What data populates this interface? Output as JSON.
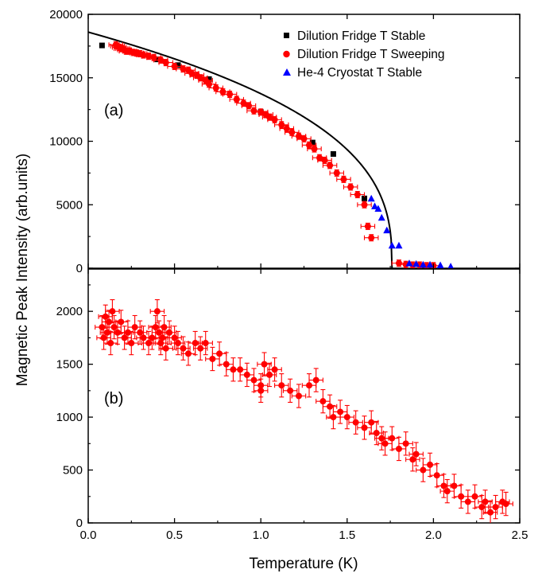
{
  "figure": {
    "ylabel": "Magnetic Peak Intensity (arb.units)",
    "xlabel": "Temperature (K)"
  },
  "colors": {
    "black": "#000000",
    "red": "#ff0000",
    "blue": "#0000ff"
  },
  "chart_data": [
    {
      "type": "scatter",
      "panel_label": "(a)",
      "xlim": [
        0.0,
        2.5
      ],
      "ylim": [
        0,
        20000
      ],
      "x_ticks": [
        "0.0",
        "0.5",
        "1.0",
        "1.5",
        "2.0",
        "2.5"
      ],
      "y_ticks": [
        "0",
        "5000",
        "10000",
        "15000",
        "20000"
      ],
      "legend_position": "top-right",
      "series": [
        {
          "name": "Dilution Fridge T Stable",
          "marker": "square",
          "color": "#000000",
          "x": [
            0.08,
            0.4,
            0.52,
            0.7,
            1.0,
            1.3,
            1.42,
            1.6
          ],
          "y": [
            17550,
            16450,
            16000,
            14900,
            12300,
            9900,
            9000,
            5500
          ]
        },
        {
          "name": "Dilution Fridge T Sweeping",
          "marker": "circle",
          "color": "#ff0000",
          "x": [
            0.16,
            0.17,
            0.18,
            0.19,
            0.2,
            0.21,
            0.22,
            0.24,
            0.26,
            0.28,
            0.3,
            0.32,
            0.35,
            0.38,
            0.42,
            0.45,
            0.5,
            0.55,
            0.58,
            0.6,
            0.63,
            0.65,
            0.68,
            0.7,
            0.74,
            0.78,
            0.82,
            0.86,
            0.9,
            0.93,
            0.96,
            1.0,
            1.03,
            1.05,
            1.08,
            1.12,
            1.15,
            1.18,
            1.22,
            1.25,
            1.28,
            1.31,
            1.34,
            1.37,
            1.4,
            1.44,
            1.48,
            1.52,
            1.56,
            1.6,
            1.62,
            1.64,
            1.8,
            1.84,
            1.88,
            1.92,
            1.96,
            2.0
          ],
          "y": [
            17600,
            17500,
            17400,
            17300,
            17300,
            17200,
            17100,
            17100,
            17000,
            16950,
            16900,
            16800,
            16700,
            16600,
            16400,
            16200,
            15900,
            15700,
            15600,
            15350,
            15200,
            15000,
            14800,
            14500,
            14200,
            13900,
            13700,
            13300,
            13000,
            12800,
            12400,
            12300,
            12100,
            11900,
            11700,
            11300,
            11000,
            10700,
            10400,
            10200,
            9700,
            9400,
            8700,
            8500,
            8100,
            7500,
            7000,
            6400,
            5800,
            5000,
            3300,
            2400,
            400,
            300,
            250,
            250,
            200,
            200
          ],
          "xerr": 0.04,
          "yerr": 250
        },
        {
          "name": "He-4 Cryostat T Stable",
          "marker": "triangle",
          "color": "#0000ff",
          "x": [
            1.64,
            1.66,
            1.68,
            1.7,
            1.73,
            1.76,
            1.8,
            1.86,
            1.9,
            1.94,
            1.98,
            2.04,
            2.1
          ],
          "y": [
            5500,
            4900,
            4700,
            4000,
            3000,
            1800,
            1800,
            400,
            350,
            300,
            300,
            250,
            150
          ]
        }
      ],
      "fit_curve": {
        "color": "#000000",
        "Tc": 1.76,
        "I0": 18600,
        "beta": 0.36
      }
    },
    {
      "type": "scatter",
      "panel_label": "(b)",
      "xlim": [
        0.0,
        2.5
      ],
      "ylim": [
        0,
        2400
      ],
      "x_ticks": [
        "0.0",
        "0.5",
        "1.0",
        "1.5",
        "2.0",
        "2.5"
      ],
      "y_ticks": [
        "0",
        "500",
        "1000",
        "1500",
        "2000"
      ],
      "series": [
        {
          "marker": "circle",
          "color": "#ff0000",
          "x": [
            0.08,
            0.09,
            0.1,
            0.11,
            0.12,
            0.13,
            0.14,
            0.15,
            0.17,
            0.19,
            0.21,
            0.23,
            0.25,
            0.27,
            0.3,
            0.32,
            0.35,
            0.37,
            0.39,
            0.4,
            0.41,
            0.42,
            0.43,
            0.44,
            0.45,
            0.47,
            0.5,
            0.52,
            0.55,
            0.58,
            0.62,
            0.65,
            0.68,
            0.72,
            0.76,
            0.8,
            0.84,
            0.88,
            0.92,
            0.96,
            1.0,
            1.0,
            1.02,
            1.05,
            1.08,
            1.12,
            1.17,
            1.22,
            1.28,
            1.32,
            1.36,
            1.4,
            1.42,
            1.46,
            1.5,
            1.55,
            1.6,
            1.64,
            1.67,
            1.7,
            1.72,
            1.76,
            1.8,
            1.84,
            1.88,
            1.9,
            1.94,
            1.98,
            2.02,
            2.06,
            2.08,
            2.12,
            2.16,
            2.2,
            2.24,
            2.28,
            2.3,
            2.33,
            2.36,
            2.4,
            2.42
          ],
          "y": [
            1850,
            1750,
            1950,
            1800,
            1900,
            1700,
            2000,
            1850,
            1800,
            1900,
            1750,
            1800,
            1700,
            1850,
            1800,
            1750,
            1700,
            1750,
            1850,
            2000,
            1800,
            1700,
            1750,
            1850,
            1650,
            1800,
            1750,
            1700,
            1650,
            1600,
            1700,
            1650,
            1700,
            1550,
            1600,
            1500,
            1450,
            1450,
            1400,
            1350,
            1300,
            1250,
            1500,
            1400,
            1450,
            1300,
            1250,
            1200,
            1300,
            1350,
            1150,
            1100,
            1000,
            1050,
            1000,
            950,
            900,
            950,
            850,
            800,
            750,
            800,
            700,
            750,
            600,
            650,
            500,
            550,
            450,
            350,
            300,
            350,
            250,
            200,
            250,
            150,
            200,
            100,
            150,
            200,
            180
          ],
          "xerr": 0.04,
          "yerr": 110
        }
      ]
    }
  ]
}
